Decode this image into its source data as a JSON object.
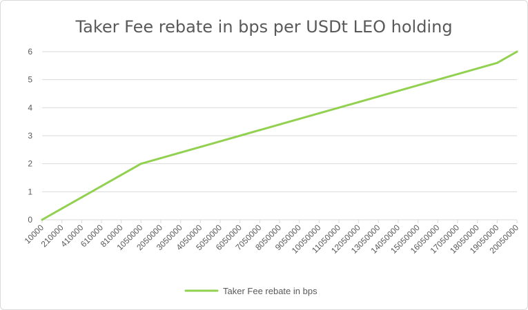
{
  "chart_data": {
    "type": "line",
    "title": "Taker Fee rebate in bps per USDt LEO holding",
    "xlabel": "",
    "ylabel": "",
    "x": [
      "10000",
      "210000",
      "410000",
      "610000",
      "810000",
      "1050000",
      "2050000",
      "3050000",
      "4050000",
      "5050000",
      "6050000",
      "7050000",
      "8050000",
      "9050000",
      "10050000",
      "11050000",
      "12050000",
      "13050000",
      "14050000",
      "15050000",
      "16050000",
      "17050000",
      "18050000",
      "19050000",
      "20050000"
    ],
    "series": [
      {
        "name": "Taker Fee rebate in bps",
        "color": "#92d050",
        "values": [
          0,
          0.4,
          0.8,
          1.2,
          1.6,
          2.0,
          2.2,
          2.4,
          2.6,
          2.8,
          3.0,
          3.2,
          3.4,
          3.6,
          3.8,
          4.0,
          4.2,
          4.4,
          4.6,
          4.8,
          5.0,
          5.2,
          5.4,
          5.6,
          6.0
        ]
      }
    ],
    "yticks": [
      "0",
      "1",
      "2",
      "3",
      "4",
      "5",
      "6"
    ],
    "ylim": [
      0,
      6
    ],
    "grid": true,
    "legend": "bottom",
    "gridColor": "#d9d9d9",
    "textColor": "#595959"
  }
}
